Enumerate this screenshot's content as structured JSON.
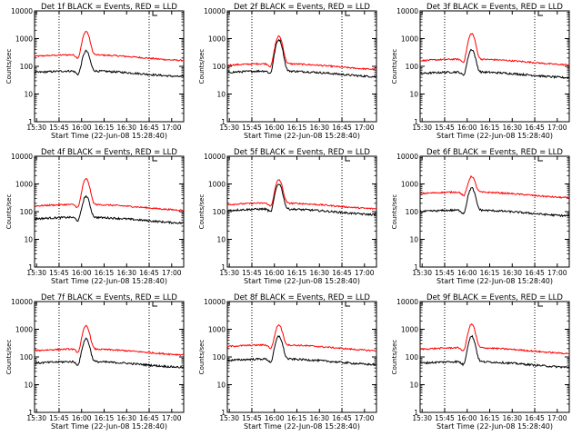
{
  "chart_data": {
    "type": "line",
    "scale": "log",
    "ylim": [
      1,
      10000
    ],
    "ylabel": "Counts/sec",
    "xlabel_prefix": "Start Time (22-Jun-08 15:28:40)",
    "x_ticks": [
      "15:30",
      "15:45",
      "16:00",
      "16:15",
      "16:30",
      "16:45",
      "17:00"
    ],
    "y_ticks": [
      "1",
      "10",
      "100",
      "1000",
      "10000"
    ],
    "grid": false,
    "marker_lines": [
      "15:45",
      "16:45"
    ],
    "panels": [
      {
        "title": "Det 1f BLACK = Events, RED = LLD",
        "red_base": 230,
        "black_base": 60,
        "red_peak": 1800,
        "black_peak": 350
      },
      {
        "title": "Det 2f BLACK = Events, RED = LLD",
        "red_base": 110,
        "black_base": 60,
        "red_peak": 1200,
        "black_peak": 900
      },
      {
        "title": "Det 3f BLACK = Events, RED = LLD",
        "red_base": 160,
        "black_base": 55,
        "red_peak": 1500,
        "black_peak": 400
      },
      {
        "title": "Det 4f BLACK = Events, RED = LLD",
        "red_base": 160,
        "black_base": 55,
        "red_peak": 1500,
        "black_peak": 350
      },
      {
        "title": "Det 5f BLACK = Events, RED = LLD",
        "red_base": 180,
        "black_base": 110,
        "red_peak": 1400,
        "black_peak": 1000
      },
      {
        "title": "Det 6f BLACK = Events, RED = LLD",
        "red_base": 450,
        "black_base": 100,
        "red_peak": 1800,
        "black_peak": 700
      },
      {
        "title": "Det 7f BLACK = Events, RED = LLD",
        "red_base": 170,
        "black_base": 60,
        "red_peak": 1300,
        "black_peak": 450
      },
      {
        "title": "Det 8f BLACK = Events, RED = LLD",
        "red_base": 240,
        "black_base": 75,
        "red_peak": 1400,
        "black_peak": 550
      },
      {
        "title": "Det 9f BLACK = Events, RED = LLD",
        "red_base": 190,
        "black_base": 60,
        "red_peak": 1500,
        "black_peak": 550
      }
    ],
    "series_colors": {
      "events": "#000000",
      "lld": "#ff0000"
    }
  }
}
